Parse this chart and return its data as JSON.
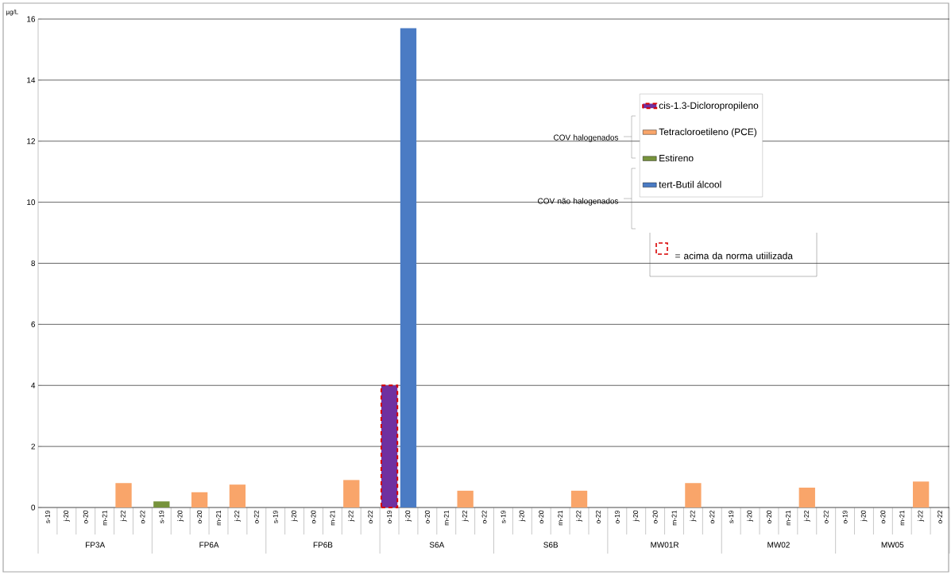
{
  "chart_data": {
    "type": "bar",
    "ylabel": "µg/L",
    "categories": [
      "s-19",
      "j-20",
      "o-20",
      "m-21",
      "j-22",
      "o-22",
      "s-19",
      "j-20",
      "o-20",
      "m-21",
      "j-22",
      "o-22",
      "s-19",
      "j-20",
      "o-20",
      "m-21",
      "j-22",
      "o-22",
      "o-19",
      "j-20",
      "o-20",
      "m-21",
      "j-22",
      "o-22",
      "s-19",
      "j-20",
      "o-20",
      "m-21",
      "j-22",
      "o-22",
      "o-19",
      "j-20",
      "o-20",
      "m-21",
      "j-22",
      "o-22",
      "s-19",
      "j-20",
      "o-20",
      "m-21",
      "j-22",
      "o-22",
      "o-19",
      "j-20",
      "o-20",
      "m-21",
      "j-22",
      "o-22"
    ],
    "series": [
      {
        "name": "cis-1.3-Dicloropropileno",
        "color": "#7030a0",
        "values": [
          null,
          null,
          null,
          null,
          null,
          null,
          null,
          null,
          null,
          null,
          null,
          null,
          null,
          null,
          null,
          null,
          null,
          null,
          4.0,
          null,
          null,
          null,
          null,
          null,
          null,
          null,
          null,
          null,
          null,
          null,
          null,
          null,
          null,
          null,
          null,
          null,
          null,
          null,
          null,
          null,
          null,
          null,
          null,
          null,
          null,
          null,
          null,
          null
        ]
      },
      {
        "name": "Tetracloroetileno (PCE)",
        "color": "#f9a56a",
        "values": [
          null,
          null,
          null,
          null,
          0.8,
          null,
          null,
          null,
          0.5,
          null,
          0.75,
          null,
          null,
          null,
          null,
          null,
          0.9,
          null,
          null,
          null,
          null,
          null,
          0.55,
          null,
          null,
          null,
          null,
          null,
          0.55,
          null,
          null,
          null,
          null,
          null,
          0.8,
          null,
          null,
          null,
          null,
          null,
          0.65,
          null,
          null,
          null,
          null,
          null,
          0.85,
          null
        ]
      },
      {
        "name": "Estireno",
        "color": "#77933c",
        "values": [
          null,
          null,
          null,
          null,
          null,
          null,
          0.2,
          null,
          null,
          null,
          null,
          null,
          null,
          null,
          null,
          null,
          null,
          null,
          null,
          null,
          null,
          null,
          null,
          null,
          null,
          null,
          null,
          null,
          null,
          null,
          null,
          null,
          null,
          null,
          null,
          null,
          null,
          null,
          null,
          null,
          null,
          null,
          null,
          null,
          null,
          null,
          null,
          null
        ]
      },
      {
        "name": "tert-Butil álcool",
        "color": "#4a7bc4",
        "values": [
          null,
          null,
          null,
          null,
          null,
          null,
          null,
          null,
          null,
          null,
          null,
          null,
          null,
          null,
          null,
          null,
          null,
          null,
          null,
          15.7,
          null,
          null,
          null,
          null,
          null,
          null,
          null,
          null,
          null,
          null,
          null,
          null,
          null,
          null,
          null,
          null,
          null,
          null,
          null,
          null,
          null,
          null,
          null,
          null,
          null,
          null,
          null,
          null
        ]
      }
    ],
    "stacked": true,
    "ylim": [
      0,
      16
    ],
    "yticks": [
      0,
      2,
      4,
      6,
      8,
      10,
      12,
      14,
      16
    ],
    "grid": "y",
    "legend": "top right",
    "annotations": [
      "FP3A",
      "FP6A",
      "FP6B",
      "S6A",
      "S6B",
      "MW01R",
      "MW02",
      "MW05",
      "COV halogenados",
      "COV não halogenados",
      "= acima da norma utiilizada"
    ]
  }
}
